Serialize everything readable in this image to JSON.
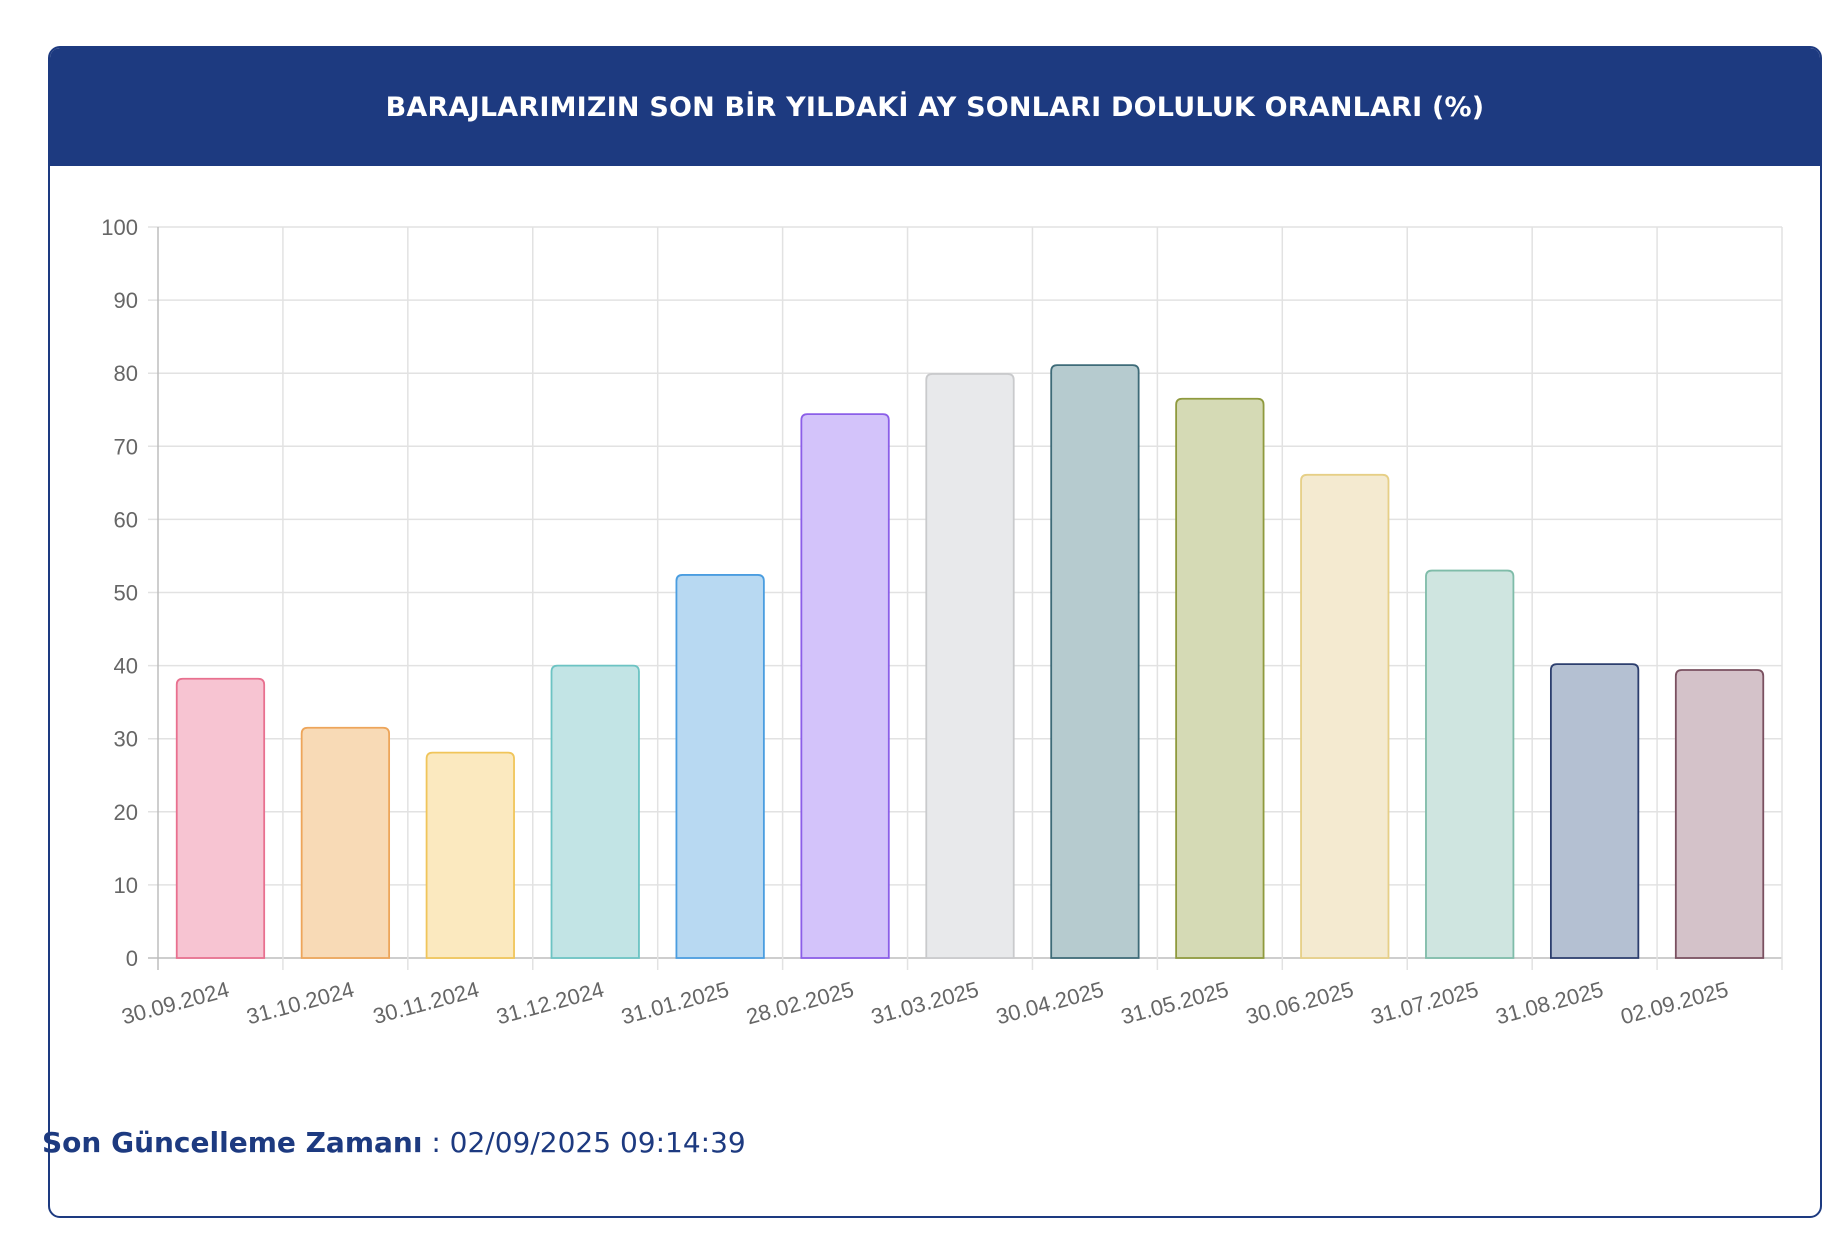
{
  "header": {
    "title": "BARAJLARIMIZIN SON BİR YILDAKİ AY SONLARI DOLULUK ORANLARI (%)"
  },
  "footer": {
    "label": "Son Güncelleme Zamanı",
    "separator": " : ",
    "value": "02/09/2025 09:14:39"
  },
  "chart_data": {
    "type": "bar",
    "title": "BARAJLARIMIZIN SON BİR YILDAKİ AY SONLARI DOLULUK ORANLARI (%)",
    "xlabel": "",
    "ylabel": "",
    "ylim": [
      0,
      100
    ],
    "yticks": [
      "0",
      "10",
      "20",
      "30",
      "40",
      "50",
      "60",
      "70",
      "80",
      "90",
      "100"
    ],
    "grid": true,
    "legend": "none",
    "categories": [
      "30.09.2024",
      "31.10.2024",
      "30.11.2024",
      "31.12.2024",
      "31.01.2025",
      "28.02.2025",
      "31.03.2025",
      "30.04.2025",
      "31.05.2025",
      "30.06.2025",
      "31.07.2025",
      "31.08.2025",
      "02.09.2025"
    ],
    "values": [
      38.2,
      31.5,
      28.1,
      40.0,
      52.4,
      74.4,
      79.9,
      81.1,
      76.5,
      66.1,
      53.0,
      40.2,
      39.4
    ],
    "fill_colors": [
      "#f7c4d2",
      "#f8dab6",
      "#fbe9bf",
      "#c2e4e5",
      "#b8d9f2",
      "#d3c3fa",
      "#e8e9eb",
      "#b6cbcf",
      "#d5dab5",
      "#f4ead0",
      "#cfe5e0",
      "#b4c0d2",
      "#d4c2c9"
    ],
    "stroke_colors": [
      "#e8708f",
      "#eda55a",
      "#f0c55a",
      "#6cc3c3",
      "#4a9de0",
      "#8b5ee8",
      "#c9cacc",
      "#3e6b78",
      "#8f9a3e",
      "#e6cf86",
      "#7fbca9",
      "#2c3e6e",
      "#7a5060"
    ]
  }
}
